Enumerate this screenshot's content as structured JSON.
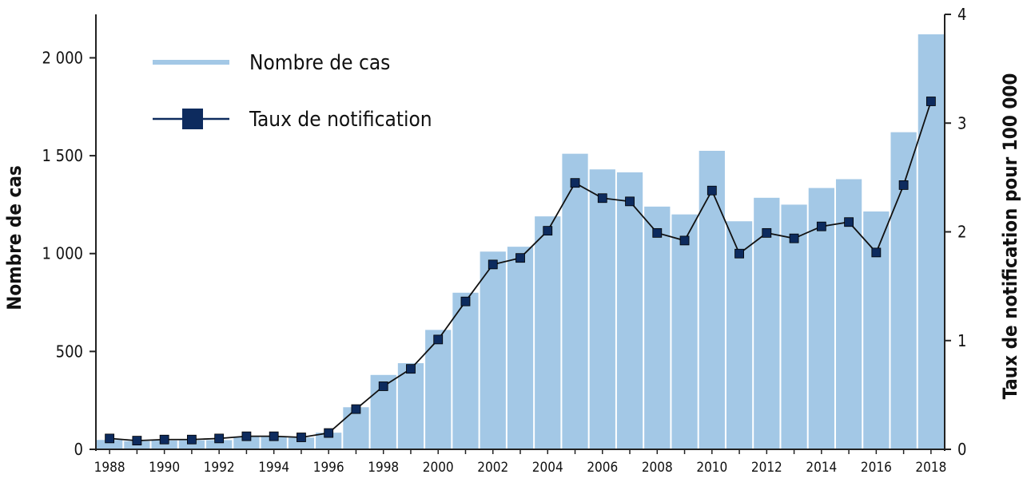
{
  "chart_data": {
    "type": "bar+line",
    "categories": [
      "1988",
      "1989",
      "1990",
      "1991",
      "1992",
      "1993",
      "1994",
      "1995",
      "1996",
      "1997",
      "1998",
      "1999",
      "2000",
      "2001",
      "2002",
      "2003",
      "2004",
      "2005",
      "2006",
      "2007",
      "2008",
      "2009",
      "2010",
      "2011",
      "2012",
      "2013",
      "2014",
      "2015",
      "2016",
      "2017",
      "2018"
    ],
    "x_tick_labels": [
      "1988",
      "1990",
      "1992",
      "1994",
      "1996",
      "1998",
      "2000",
      "2002",
      "2004",
      "2006",
      "2008",
      "2010",
      "2012",
      "2014",
      "2016",
      "2018"
    ],
    "series": [
      {
        "name": "Nombre de cas",
        "type": "bar",
        "axis": "left",
        "color": "#a3c8e6",
        "values": [
          48,
          42,
          45,
          46,
          47,
          65,
          65,
          60,
          85,
          215,
          380,
          440,
          610,
          800,
          1010,
          1035,
          1190,
          1510,
          1430,
          1415,
          1240,
          1200,
          1525,
          1165,
          1285,
          1250,
          1335,
          1380,
          1215,
          1620,
          2120
        ]
      },
      {
        "name": "Taux de notification",
        "type": "line",
        "axis": "right",
        "color": "#0d2b5e",
        "values": [
          0.1,
          0.08,
          0.09,
          0.09,
          0.1,
          0.12,
          0.12,
          0.11,
          0.15,
          0.37,
          0.58,
          0.74,
          1.01,
          1.36,
          1.7,
          1.76,
          2.01,
          2.45,
          2.31,
          2.28,
          1.99,
          1.92,
          2.38,
          1.8,
          1.99,
          1.94,
          2.05,
          2.09,
          1.81,
          2.43,
          3.2
        ]
      }
    ],
    "ylabel": "Nombre de cas",
    "ylabel_right": "Taux de notification pour 100 000",
    "ylim": [
      0,
      2222
    ],
    "ylim_right": [
      0,
      4
    ],
    "y_ticks": [
      {
        "value": 0,
        "label": "0"
      },
      {
        "value": 500,
        "label": "500"
      },
      {
        "value": 1000,
        "label": "1 000"
      },
      {
        "value": 1500,
        "label": "1 500"
      },
      {
        "value": 2000,
        "label": "2 000"
      }
    ],
    "y_ticks_right": [
      {
        "value": 0,
        "label": "0"
      },
      {
        "value": 1,
        "label": "1"
      },
      {
        "value": 2,
        "label": "2"
      },
      {
        "value": 3,
        "label": "3"
      },
      {
        "value": 4,
        "label": "4"
      }
    ],
    "legend_position": "top-left",
    "grid": false
  }
}
